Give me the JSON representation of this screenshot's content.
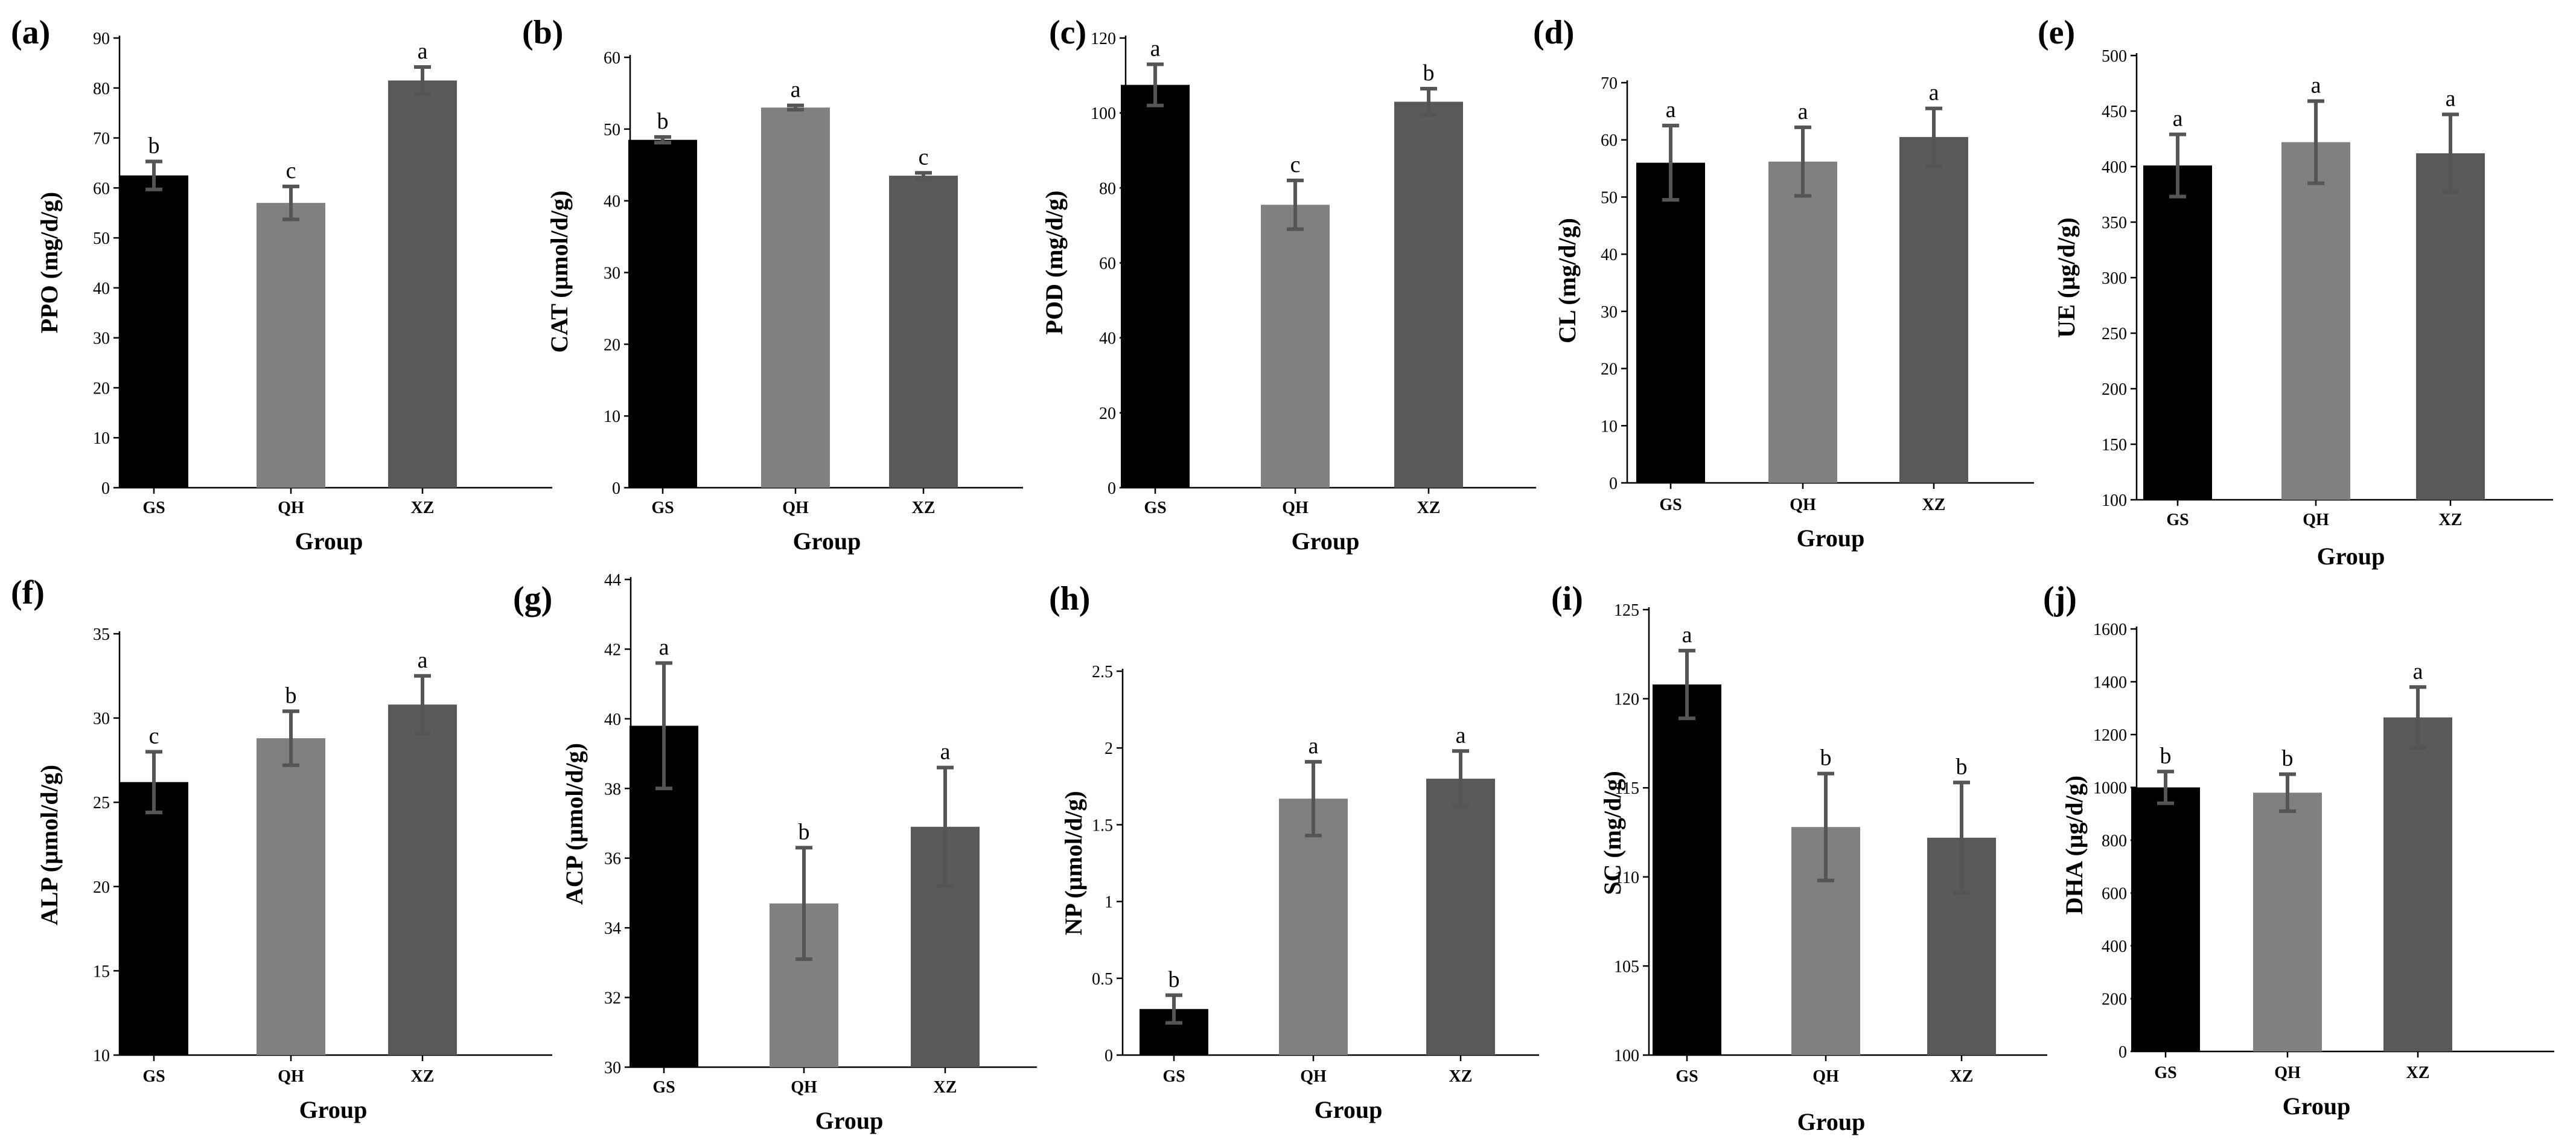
{
  "palette": {
    "GS": "#000000",
    "QH": "#808080",
    "XZ": "#595959",
    "error_bar": "#555555"
  },
  "chart_data": [
    {
      "panel": "(a)",
      "type": "bar",
      "categories": [
        "GS",
        "QH",
        "XZ"
      ],
      "values": [
        62.5,
        57,
        81.5
      ],
      "errors": [
        2.8,
        3.3,
        2.7
      ],
      "letters": [
        "b",
        "c",
        "a"
      ],
      "ylabel": "PPO   (mg/d/g)",
      "xlabel": "Group",
      "ylim": [
        0,
        90
      ],
      "yticks": [
        "0",
        "10",
        "20",
        "30",
        "40",
        "50",
        "60",
        "70",
        "80",
        "90"
      ]
    },
    {
      "panel": "(b)",
      "type": "bar",
      "categories": [
        "GS",
        "QH",
        "XZ"
      ],
      "values": [
        48.5,
        53,
        43.5
      ],
      "errors": [
        0.4,
        0.3,
        0.4
      ],
      "letters": [
        "b",
        "a",
        "c"
      ],
      "ylabel": "CAT  (μmol/d/g)",
      "xlabel": "Group",
      "ylim": [
        0,
        60
      ],
      "yticks": [
        "0",
        "10",
        "20",
        "30",
        "40",
        "50",
        "60"
      ]
    },
    {
      "panel": "(c)",
      "type": "bar",
      "categories": [
        "GS",
        "QH",
        "XZ"
      ],
      "values": [
        107.5,
        75.5,
        103
      ],
      "errors": [
        5.5,
        6.5,
        3.5
      ],
      "letters": [
        "a",
        "c",
        "b"
      ],
      "ylabel": "POD  (mg/d/g)",
      "xlabel": "Group",
      "ylim": [
        0,
        120
      ],
      "yticks": [
        "0",
        "20",
        "40",
        "60",
        "80",
        "100",
        "120"
      ]
    },
    {
      "panel": "(d)",
      "type": "bar",
      "categories": [
        "GS",
        "QH",
        "XZ"
      ],
      "values": [
        56,
        56.2,
        60.5
      ],
      "errors": [
        6.5,
        6,
        5
      ],
      "letters": [
        "a",
        "a",
        "a"
      ],
      "ylabel": "CL (mg/d/g)",
      "xlabel": "Group",
      "ylim": [
        0,
        70
      ],
      "yticks": [
        "0",
        "10",
        "20",
        "30",
        "40",
        "50",
        "60",
        "70"
      ]
    },
    {
      "panel": "(e)",
      "type": "bar",
      "categories": [
        "GS",
        "QH",
        "XZ"
      ],
      "values": [
        401,
        422,
        412
      ],
      "errors": [
        28,
        37,
        35
      ],
      "letters": [
        "a",
        "a",
        "a"
      ],
      "ylabel": "UE (μg/d/g)",
      "xlabel": "Group",
      "ylim": [
        100,
        500
      ],
      "yticks": [
        "100",
        "150",
        "200",
        "250",
        "300",
        "350",
        "400",
        "450",
        "500"
      ]
    },
    {
      "panel": "(f)",
      "type": "bar",
      "categories": [
        "GS",
        "QH",
        "XZ"
      ],
      "values": [
        26.2,
        28.8,
        30.8
      ],
      "errors": [
        1.8,
        1.6,
        1.7
      ],
      "letters": [
        "c",
        "b",
        "a"
      ],
      "ylabel": "ALP  (μmol/d/g)",
      "xlabel": "Group",
      "ylim": [
        10,
        35
      ],
      "yticks": [
        "10",
        "15",
        "20",
        "25",
        "30",
        "35"
      ]
    },
    {
      "panel": "(g)",
      "type": "bar",
      "categories": [
        "GS",
        "QH",
        "XZ"
      ],
      "values": [
        39.8,
        34.7,
        36.9
      ],
      "errors": [
        1.8,
        1.6,
        1.7
      ],
      "letters": [
        "a",
        "b",
        "a"
      ],
      "ylabel": "ACP  (μmol/d/g)",
      "xlabel": "Group",
      "ylim": [
        30,
        44
      ],
      "yticks": [
        "30",
        "32",
        "34",
        "36",
        "38",
        "40",
        "42",
        "44"
      ]
    },
    {
      "panel": "(h)",
      "type": "bar",
      "categories": [
        "GS",
        "QH",
        "XZ"
      ],
      "values": [
        0.3,
        1.67,
        1.8
      ],
      "errors": [
        0.09,
        0.24,
        0.18
      ],
      "letters": [
        "b",
        "a",
        "a"
      ],
      "ylabel": "NP  (μmol/d/g)",
      "xlabel": "Group",
      "ylim": [
        0,
        2.5
      ],
      "yticks": [
        "0",
        "0.5",
        "1",
        "1.5",
        "2",
        "2.5"
      ]
    },
    {
      "panel": "(i)",
      "type": "bar",
      "categories": [
        "GS",
        "QH",
        "XZ"
      ],
      "values": [
        120.8,
        112.8,
        112.2
      ],
      "errors": [
        1.9,
        3,
        3.1
      ],
      "letters": [
        "a",
        "b",
        "b"
      ],
      "ylabel": "SC (mg/d/g)",
      "xlabel": "Group",
      "ylim": [
        100,
        125
      ],
      "yticks": [
        "100",
        "105",
        "110",
        "115",
        "120",
        "125"
      ]
    },
    {
      "panel": "(j)",
      "type": "bar",
      "categories": [
        "GS",
        "QH",
        "XZ"
      ],
      "values": [
        1000,
        980,
        1265
      ],
      "errors": [
        60,
        70,
        115
      ],
      "letters": [
        "b",
        "b",
        "a"
      ],
      "ylabel": "DHA (μg/d/g)",
      "xlabel": "Group",
      "ylim": [
        0,
        1600
      ],
      "yticks": [
        "0",
        "200",
        "400",
        "600",
        "800",
        "1000",
        "1200",
        "1400",
        "1600"
      ]
    }
  ]
}
